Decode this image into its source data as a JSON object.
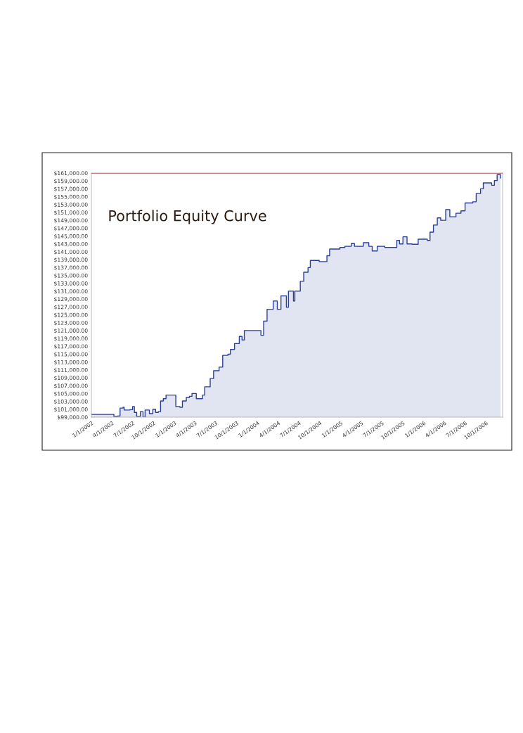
{
  "chart_data": {
    "type": "area",
    "title": "Portfolio Equity Curve",
    "x": [
      "2002-01-01",
      "2002-04-03",
      "2002-04-10",
      "2002-04-25",
      "2002-05-07",
      "2002-05-20",
      "2002-05-25",
      "2002-06-19",
      "2002-07-01",
      "2002-07-09",
      "2002-07-19",
      "2002-08-04",
      "2002-08-16",
      "2002-08-25",
      "2002-09-13",
      "2002-09-28",
      "2002-10-10",
      "2002-10-22",
      "2002-11-01",
      "2002-11-13",
      "2002-11-25",
      "2002-12-28",
      "2003-01-07",
      "2003-01-25",
      "2003-02-05",
      "2003-02-22",
      "2003-03-08",
      "2003-03-19",
      "2003-04-07",
      "2003-05-04",
      "2003-05-14",
      "2003-06-07",
      "2003-06-22",
      "2003-07-16",
      "2003-08-01",
      "2003-08-24",
      "2003-09-04",
      "2003-09-22",
      "2003-10-13",
      "2003-10-25",
      "2003-11-04",
      "2004-01-04",
      "2004-01-16",
      "2004-01-28",
      "2004-02-12",
      "2004-03-10",
      "2004-03-28",
      "2004-04-13",
      "2004-05-07",
      "2004-05-16",
      "2004-05-28",
      "2004-06-07",
      "2004-06-13",
      "2004-07-07",
      "2004-07-22",
      "2004-08-10",
      "2004-08-20",
      "2004-09-28",
      "2004-11-01",
      "2004-11-13",
      "2004-12-28",
      "2005-01-19",
      "2005-02-16",
      "2005-03-02",
      "2005-04-10",
      "2005-05-04",
      "2005-05-19",
      "2005-06-10",
      "2005-07-13",
      "2005-08-28",
      "2005-09-04",
      "2005-09-16",
      "2005-10-01",
      "2005-10-19",
      "2005-11-10",
      "2005-12-07",
      "2006-01-16",
      "2006-01-28",
      "2006-02-12",
      "2006-03-01",
      "2006-03-16",
      "2006-04-07",
      "2006-04-25",
      "2006-05-22",
      "2006-06-13",
      "2006-07-01",
      "2006-08-04",
      "2006-08-19",
      "2006-09-07",
      "2006-09-19",
      "2006-10-26",
      "2006-11-07",
      "2006-11-19",
      "2006-12-04"
    ],
    "series": [
      {
        "color": "#2a3f9a",
        "values": [
          99700,
          99700,
          99200,
          99300,
          101300,
          101500,
          100800,
          100900,
          101700,
          100200,
          99200,
          100400,
          99000,
          100800,
          99900,
          101000,
          100200,
          100400,
          103100,
          103700,
          104600,
          104600,
          101700,
          101500,
          103100,
          104000,
          104300,
          105000,
          103700,
          104600,
          106700,
          108800,
          110800,
          111700,
          114700,
          115000,
          116200,
          117700,
          119500,
          118600,
          121000,
          121000,
          119800,
          123400,
          126400,
          128500,
          126400,
          129800,
          126900,
          131000,
          131000,
          128500,
          131000,
          133500,
          135800,
          137000,
          138800,
          138500,
          140000,
          141700,
          142100,
          142400,
          143100,
          142400,
          143300,
          142400,
          141200,
          142400,
          142100,
          142100,
          143900,
          143000,
          144800,
          143000,
          142900,
          144200,
          143900,
          146000,
          147800,
          149600,
          149000,
          151700,
          149900,
          150800,
          151400,
          153400,
          153700,
          155800,
          157000,
          158500,
          157900,
          159100,
          160600,
          159700
        ]
      }
    ],
    "xlim": [
      "2002-01-01",
      "2006-12-13"
    ],
    "xticks": [
      {
        "value": "2002-01-01",
        "label": "1/1/2002"
      },
      {
        "value": "2002-04-01",
        "label": "4/1/2002"
      },
      {
        "value": "2002-07-01",
        "label": "7/1/2002"
      },
      {
        "value": "2002-10-01",
        "label": "10/1/2002"
      },
      {
        "value": "2003-01-01",
        "label": "1/1/2003"
      },
      {
        "value": "2003-04-01",
        "label": "4/1/2003"
      },
      {
        "value": "2003-07-01",
        "label": "7/1/2003"
      },
      {
        "value": "2003-10-01",
        "label": "10/1/2003"
      },
      {
        "value": "2004-01-01",
        "label": "1/1/2004"
      },
      {
        "value": "2004-04-01",
        "label": "4/1/2004"
      },
      {
        "value": "2004-07-01",
        "label": "7/1/2004"
      },
      {
        "value": "2004-10-01",
        "label": "10/1/2004"
      },
      {
        "value": "2005-01-01",
        "label": "1/1/2005"
      },
      {
        "value": "2005-04-01",
        "label": "4/1/2005"
      },
      {
        "value": "2005-07-01",
        "label": "7/1/2005"
      },
      {
        "value": "2005-10-01",
        "label": "10/1/2005"
      },
      {
        "value": "2006-01-01",
        "label": "1/1/2006"
      },
      {
        "value": "2006-04-01",
        "label": "4/1/2006"
      },
      {
        "value": "2006-07-01",
        "label": "7/1/2006"
      },
      {
        "value": "2006-10-01",
        "label": "10/1/2006"
      }
    ],
    "ylim": [
      99000,
      161000
    ],
    "yticks": [
      {
        "value": 99000,
        "label": "$99,000.00"
      },
      {
        "value": 101000,
        "label": "$101,000.00"
      },
      {
        "value": 103000,
        "label": "$103,000.00"
      },
      {
        "value": 105000,
        "label": "$105,000.00"
      },
      {
        "value": 107000,
        "label": "$107,000.00"
      },
      {
        "value": 109000,
        "label": "$109,000.00"
      },
      {
        "value": 111000,
        "label": "$111,000.00"
      },
      {
        "value": 113000,
        "label": "$113,000.00"
      },
      {
        "value": 115000,
        "label": "$115,000.00"
      },
      {
        "value": 117000,
        "label": "$117,000.00"
      },
      {
        "value": 119000,
        "label": "$119,000.00"
      },
      {
        "value": 121000,
        "label": "$121,000.00"
      },
      {
        "value": 123000,
        "label": "$123,000.00"
      },
      {
        "value": 125000,
        "label": "$125,000.00"
      },
      {
        "value": 127000,
        "label": "$127,000.00"
      },
      {
        "value": 129000,
        "label": "$129,000.00"
      },
      {
        "value": 131000,
        "label": "$131,000.00"
      },
      {
        "value": 133000,
        "label": "$133,000.00"
      },
      {
        "value": 135000,
        "label": "$135,000.00"
      },
      {
        "value": 137000,
        "label": "$137,000.00"
      },
      {
        "value": 139000,
        "label": "$139,000.00"
      },
      {
        "value": 141000,
        "label": "$141,000.00"
      },
      {
        "value": 143000,
        "label": "$143,000.00"
      },
      {
        "value": 145000,
        "label": "$145,000.00"
      },
      {
        "value": 147000,
        "label": "$147,000.00"
      },
      {
        "value": 149000,
        "label": "$149,000.00"
      },
      {
        "value": 151000,
        "label": "$151,000.00"
      },
      {
        "value": 153000,
        "label": "$153,000.00"
      },
      {
        "value": 155000,
        "label": "$155,000.00"
      },
      {
        "value": 157000,
        "label": "$157,000.00"
      },
      {
        "value": 159000,
        "label": "$159,000.00"
      },
      {
        "value": 161000,
        "label": "$161,000.00"
      }
    ],
    "ref_lines": [
      {
        "axis": "y",
        "value": 161000,
        "color": "#b86060"
      }
    ],
    "grid": false
  }
}
